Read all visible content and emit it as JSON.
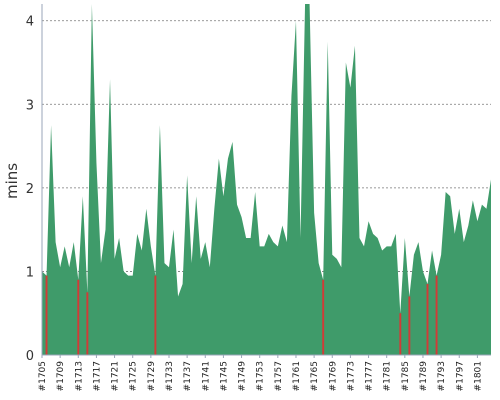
{
  "chart_data": {
    "type": "area",
    "title": "",
    "xlabel": "",
    "ylabel": "mins",
    "ylim": [
      0,
      4.2
    ],
    "yticks": [
      0,
      1,
      2,
      3,
      4
    ],
    "grid": true,
    "x_start": 1705,
    "x_end": 1803,
    "x_tick_labels": [
      "#1705",
      "#1709",
      "#1713",
      "#1717",
      "#1721",
      "#1725",
      "#1729",
      "#1733",
      "#1737",
      "#1741",
      "#1745",
      "#1749",
      "#1753",
      "#1757",
      "#1761",
      "#1765",
      "#1769",
      "#1773",
      "#1777",
      "#1781",
      "#1785",
      "#1789",
      "#1793",
      "#1797",
      "#1801"
    ],
    "threshold": 1.0,
    "colors": {
      "normal": "#3f9b6a",
      "highlight": "#d23b37",
      "grid": "#777777",
      "axis": "#9aa6b8"
    },
    "values": [
      1.0,
      0.95,
      2.75,
      1.35,
      1.05,
      1.3,
      1.05,
      1.35,
      0.9,
      1.9,
      0.75,
      4.3,
      2.3,
      1.1,
      1.5,
      3.3,
      1.15,
      1.4,
      1.0,
      0.95,
      0.95,
      1.45,
      1.25,
      1.75,
      1.3,
      0.95,
      2.75,
      1.1,
      1.05,
      1.5,
      0.7,
      0.85,
      2.15,
      1.1,
      1.9,
      1.15,
      1.35,
      1.05,
      1.75,
      2.35,
      1.9,
      2.35,
      2.55,
      1.8,
      1.65,
      1.4,
      1.4,
      1.95,
      1.3,
      1.3,
      1.45,
      1.35,
      1.3,
      1.55,
      1.35,
      3.1,
      4.0,
      1.4,
      4.25,
      4.25,
      1.7,
      1.1,
      0.9,
      3.75,
      1.2,
      1.15,
      1.05,
      3.5,
      3.2,
      3.7,
      1.4,
      1.3,
      1.6,
      1.45,
      1.4,
      1.25,
      1.3,
      1.3,
      1.45,
      0.5,
      1.4,
      0.7,
      1.2,
      1.35,
      1.0,
      0.85,
      1.25,
      0.95,
      1.2,
      1.95,
      1.9,
      1.45,
      1.75,
      1.35,
      1.55,
      1.85,
      1.6,
      1.8,
      1.75,
      2.1
    ]
  }
}
